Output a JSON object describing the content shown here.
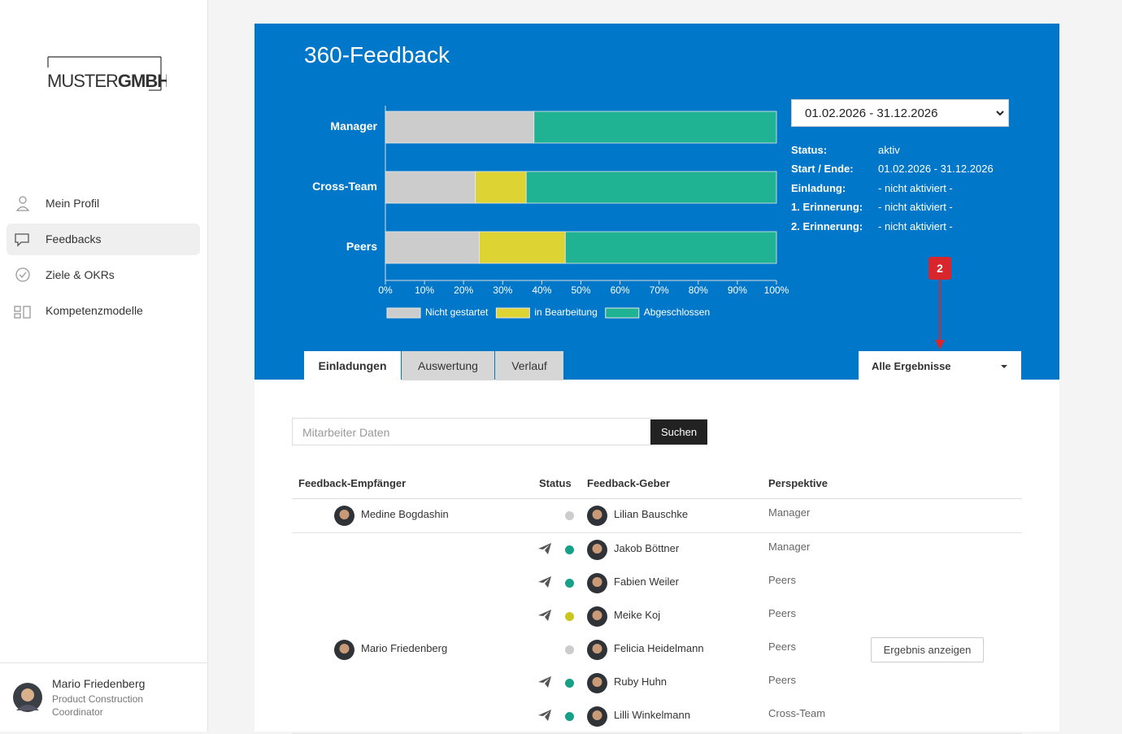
{
  "sidebar": {
    "logo": {
      "light": "MUSTER",
      "bold": "GMBH"
    },
    "nav": [
      "Mein Profil",
      "Feedbacks",
      "Ziele & OKRs",
      "Kompetenzmodelle"
    ],
    "user": {
      "name": "Mario Friedenberg",
      "role": "Product Construction Coordinator"
    }
  },
  "header": {
    "title": "360-Feedback"
  },
  "chart_data": {
    "type": "bar",
    "orientation": "horizontal",
    "stacked": true,
    "categories": [
      "Manager",
      "Cross-Team",
      "Peers"
    ],
    "series": [
      {
        "name": "Nicht gestartet",
        "color": "#cccccc",
        "values": [
          38,
          23,
          24
        ]
      },
      {
        "name": "in Bearbeitung",
        "color": "#ddd433",
        "values": [
          0,
          13,
          22
        ]
      },
      {
        "name": "Abgeschlossen",
        "color": "#20b393",
        "values": [
          62,
          64,
          54
        ]
      }
    ],
    "xlim": [
      0,
      100
    ],
    "xticks": [
      {
        "value": 0,
        "label": "0%"
      },
      {
        "value": 10,
        "label": "10%"
      },
      {
        "value": 20,
        "label": "20%"
      },
      {
        "value": 30,
        "label": "30%"
      },
      {
        "value": 40,
        "label": "40%"
      },
      {
        "value": 50,
        "label": "50%"
      },
      {
        "value": 60,
        "label": "60%"
      },
      {
        "value": 70,
        "label": "70%"
      },
      {
        "value": 80,
        "label": "80%"
      },
      {
        "value": 90,
        "label": "90%"
      },
      {
        "value": 100,
        "label": "100%"
      }
    ]
  },
  "period_select": "01.02.2026 - 31.12.2026",
  "status": [
    {
      "label": "Status:",
      "value": "aktiv"
    },
    {
      "label": "Start / Ende:",
      "value": "01.02.2026 - 31.12.2026"
    },
    {
      "label": "Einladung:",
      "value": "- nicht aktiviert -"
    },
    {
      "label": "1. Erinnerung:",
      "value": "- nicht aktiviert -"
    },
    {
      "label": "2. Erinnerung:",
      "value": "- nicht aktiviert -"
    }
  ],
  "annotation": "2",
  "tabs": [
    "Einladungen",
    "Auswertung",
    "Verlauf"
  ],
  "filter": "Alle Ergebnisse",
  "search": {
    "placeholder": "Mitarbeiter Daten",
    "button": "Suchen"
  },
  "table": {
    "columns": [
      "Feedback-Empfänger",
      "Status",
      "Feedback-Geber",
      "Perspektive"
    ],
    "rows": [
      {
        "recipient": "Medine Bogdashin",
        "givers": [
          {
            "name": "Lilian Bauschke",
            "perspective": "Manager",
            "status_color": "#cccccc",
            "sent": false
          }
        ]
      },
      {
        "recipient": "Mario Friedenberg",
        "action": "Ergebnis anzeigen",
        "givers": [
          {
            "name": "Jakob Böttner",
            "perspective": "Manager",
            "status_color": "#17a088",
            "sent": true
          },
          {
            "name": "Fabien Weiler",
            "perspective": "Peers",
            "status_color": "#17a088",
            "sent": true
          },
          {
            "name": "Meike Koj",
            "perspective": "Peers",
            "status_color": "#c9c71b",
            "sent": true
          },
          {
            "name": "Felicia Heidelmann",
            "perspective": "Peers",
            "status_color": "#cccccc",
            "sent": false
          },
          {
            "name": "Ruby Huhn",
            "perspective": "Peers",
            "status_color": "#17a088",
            "sent": true
          },
          {
            "name": "Lilli Winkelmann",
            "perspective": "Cross-Team",
            "status_color": "#17a088",
            "sent": true
          }
        ]
      }
    ]
  }
}
